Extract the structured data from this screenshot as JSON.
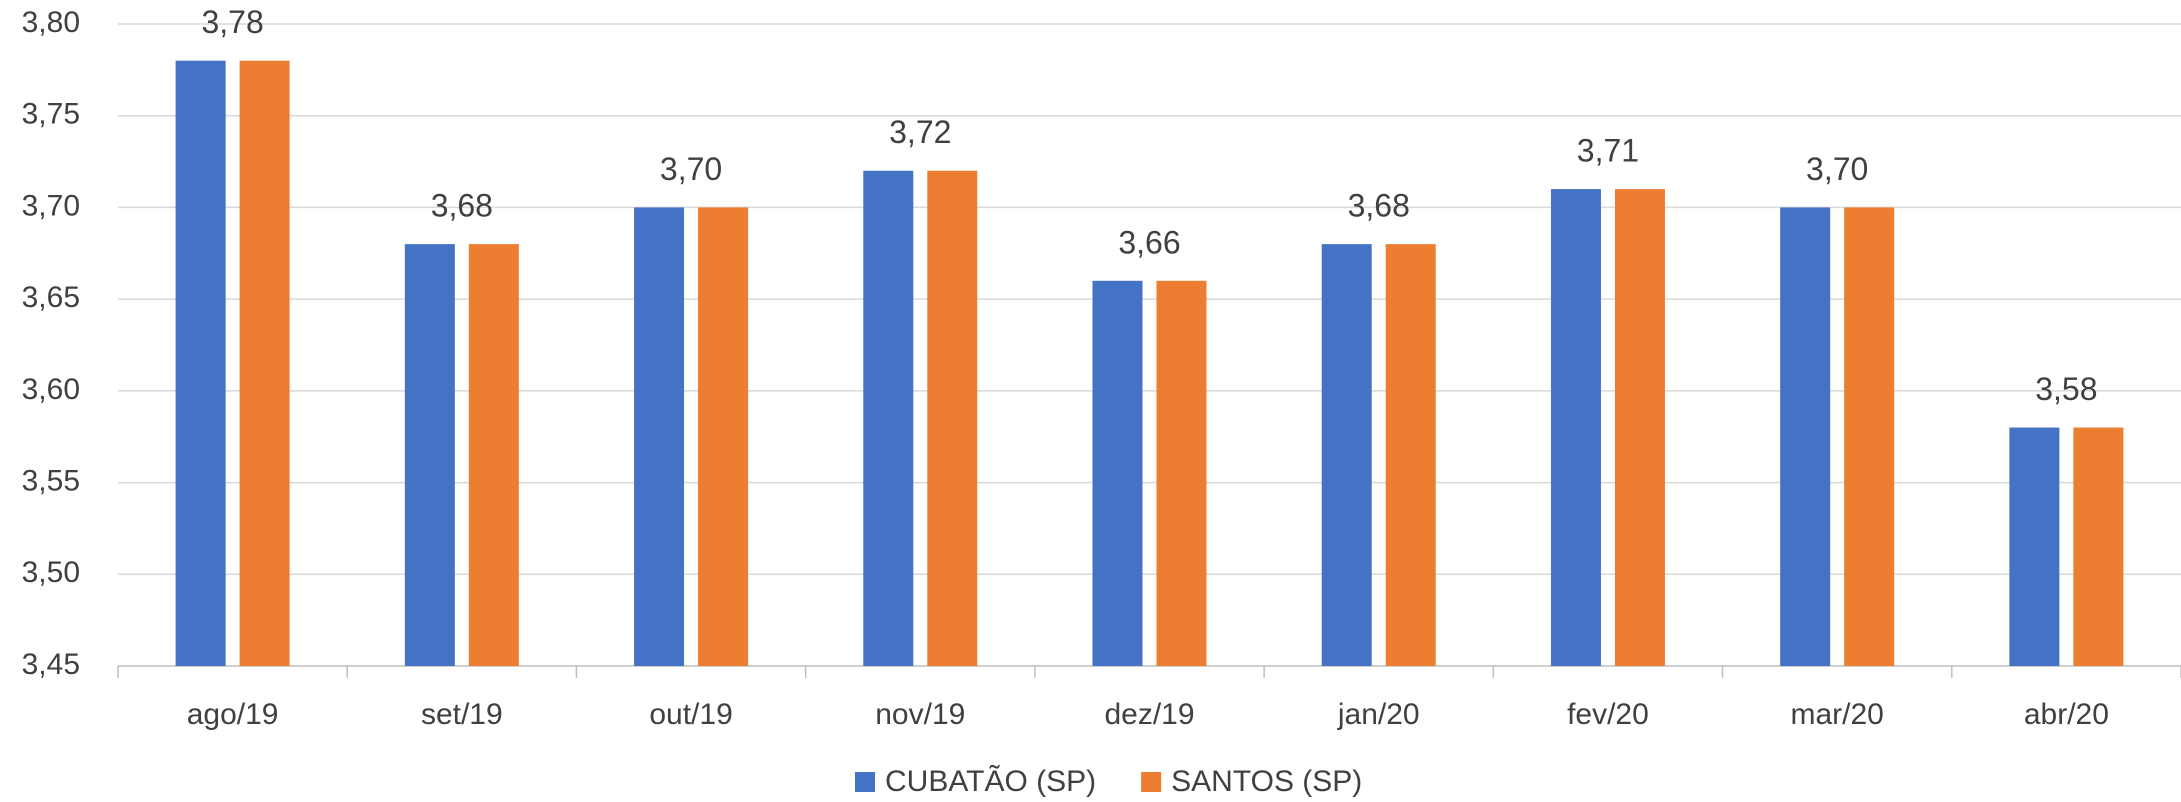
{
  "chart_data": {
    "type": "bar",
    "categories": [
      "ago/19",
      "set/19",
      "out/19",
      "nov/19",
      "dez/19",
      "jan/20",
      "fev/20",
      "mar/20",
      "abr/20"
    ],
    "series": [
      {
        "name": "CUBATÃO (SP)",
        "color": "#4472c4",
        "values": [
          3.78,
          3.68,
          3.7,
          3.72,
          3.66,
          3.68,
          3.71,
          3.7,
          3.58
        ],
        "value_labels": [
          "3,78",
          "3,68",
          "3,70",
          "3,72",
          "3,66",
          "3,68",
          "3,71",
          "3,70",
          "3,58"
        ]
      },
      {
        "name": "SANTOS (SP)",
        "color": "#ed7d31",
        "values": [
          3.78,
          3.68,
          3.7,
          3.72,
          3.66,
          3.68,
          3.71,
          3.7,
          3.58
        ]
      }
    ],
    "ylim": [
      3.45,
      3.8
    ],
    "yticks": [
      {
        "value": 3.45,
        "label": "3,45"
      },
      {
        "value": 3.5,
        "label": "3,50"
      },
      {
        "value": 3.55,
        "label": "3,55"
      },
      {
        "value": 3.6,
        "label": "3,60"
      },
      {
        "value": 3.65,
        "label": "3,65"
      },
      {
        "value": 3.7,
        "label": "3,70"
      },
      {
        "value": 3.75,
        "label": "3,75"
      },
      {
        "value": 3.8,
        "label": "3,80"
      }
    ],
    "grid": true,
    "legend": "bottom"
  }
}
